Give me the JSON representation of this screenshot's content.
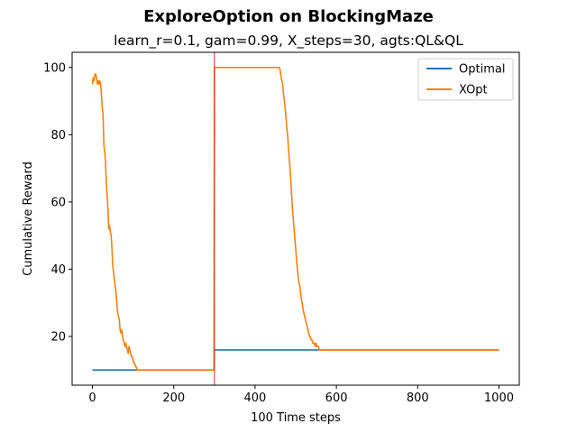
{
  "chart_data": {
    "type": "line",
    "title": "ExploreOption on BlockingMaze",
    "subtitle": "learn_r=0.1, gam=0.99, X_steps=30, agts:QL&QL",
    "xlabel": "100 Time steps",
    "ylabel": "Cumulative Reward",
    "xlim": [
      -50,
      1050
    ],
    "ylim": [
      5.5,
      104.5
    ],
    "xticks": [
      0,
      200,
      400,
      600,
      800,
      1000
    ],
    "yticks": [
      20,
      40,
      60,
      80,
      100
    ],
    "grid": false,
    "legend_position": "top-right",
    "vline": {
      "x": 300,
      "color": "#d62728"
    },
    "series": [
      {
        "name": "Optimal",
        "color": "#1f77b4",
        "x": [
          0,
          299,
          300,
          1000
        ],
        "y": [
          10,
          10,
          16,
          16
        ]
      },
      {
        "name": "XOpt",
        "color": "#ff7f0e",
        "x": [
          0,
          2,
          4,
          6,
          8,
          10,
          12,
          14,
          16,
          18,
          20,
          22,
          24,
          26,
          28,
          30,
          32,
          34,
          36,
          38,
          40,
          42,
          44,
          46,
          48,
          50,
          52,
          54,
          56,
          58,
          60,
          62,
          64,
          66,
          68,
          70,
          72,
          74,
          76,
          78,
          80,
          82,
          84,
          86,
          88,
          90,
          92,
          94,
          96,
          98,
          100,
          102,
          104,
          106,
          108,
          110,
          150,
          200,
          250,
          299,
          300,
          320,
          360,
          400,
          440,
          460,
          462,
          464,
          466,
          468,
          470,
          472,
          474,
          476,
          478,
          480,
          482,
          484,
          486,
          488,
          490,
          492,
          494,
          496,
          498,
          500,
          502,
          504,
          506,
          508,
          510,
          512,
          514,
          516,
          518,
          520,
          522,
          524,
          526,
          528,
          530,
          532,
          534,
          536,
          538,
          540,
          542,
          544,
          546,
          548,
          550,
          552,
          554,
          556,
          558,
          560,
          562,
          564,
          566,
          568,
          570,
          572,
          574,
          576,
          578,
          580,
          582,
          584,
          586,
          588,
          590,
          592,
          594,
          596,
          598,
          600,
          610,
          620,
          630,
          640,
          650,
          660,
          670,
          680,
          700,
          800,
          900,
          1000
        ],
        "y": [
          95,
          97,
          96,
          98,
          98,
          97,
          95,
          96,
          95,
          96,
          95,
          92,
          88,
          86,
          77,
          75,
          72,
          66,
          62,
          58,
          52,
          53,
          51,
          50,
          46,
          41,
          39,
          37,
          35,
          33,
          30,
          27,
          26,
          25,
          22,
          21,
          22,
          20,
          19,
          18,
          17,
          18,
          17,
          16,
          15,
          17,
          16,
          15,
          14,
          14,
          13,
          12,
          12,
          11,
          11,
          10,
          10,
          10,
          10,
          10,
          100,
          100,
          100,
          100,
          100,
          100,
          99,
          97,
          96,
          95,
          92,
          90,
          88,
          85,
          82,
          80,
          76,
          73,
          70,
          66,
          62,
          58,
          55,
          52,
          49,
          46,
          43,
          40,
          38,
          36,
          35,
          33,
          31,
          30,
          28,
          27,
          26,
          25,
          24,
          23,
          22,
          21,
          20,
          20,
          19,
          19,
          18,
          18,
          18,
          17,
          18,
          17,
          17,
          17,
          16,
          16,
          16,
          16,
          16,
          16,
          16,
          16,
          16,
          16,
          16,
          16,
          16,
          16,
          16,
          16,
          16,
          16,
          16,
          16,
          16,
          16,
          16,
          16,
          16,
          16,
          16,
          16,
          16,
          16,
          16,
          16,
          16,
          16
        ]
      }
    ]
  }
}
